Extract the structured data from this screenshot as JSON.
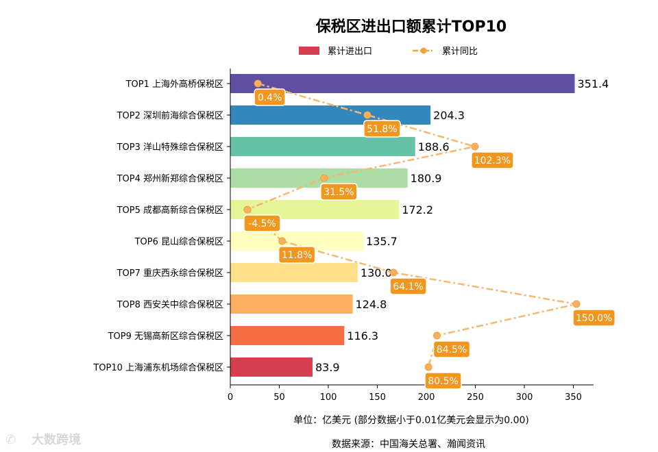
{
  "chart_data": {
    "type": "bar",
    "orientation": "horizontal",
    "title": "保税区进出口额累计TOP10",
    "legend": [
      {
        "name": "累计进出口",
        "kind": "bar",
        "color": "#d63e50"
      },
      {
        "name": "累计同比",
        "kind": "line",
        "color": "#f5a23a"
      }
    ],
    "categories": [
      "TOP1 上海外高桥保税区",
      "TOP2 深圳前海综合保税区",
      "TOP3 洋山特殊综合保税区",
      "TOP4 郑州新郑综合保税区",
      "TOP5 成都高新综合保税区",
      "TOP6 昆山综合保税区",
      "TOP7 重庆西永综合保税区",
      "TOP8 西安关中综合保税区",
      "TOP9 无锡高新区综合保税区",
      "TOP10 上海浦东机场综合保税区"
    ],
    "series": [
      {
        "name": "累计进出口",
        "values": [
          351.4,
          204.3,
          188.6,
          180.9,
          172.2,
          135.7,
          130.0,
          124.8,
          116.3,
          83.9
        ]
      },
      {
        "name": "累计同比",
        "values": [
          0.4,
          51.8,
          102.3,
          31.5,
          -4.5,
          11.8,
          64.1,
          150.0,
          84.5,
          80.5
        ]
      }
    ],
    "value_labels": [
      "351.4",
      "204.3",
      "188.6",
      "180.9",
      "172.2",
      "135.7",
      "130.0",
      "124.8",
      "116.3",
      "83.9"
    ],
    "growth_labels": [
      "0.4%",
      "51.8%",
      "102.3%",
      "31.5%",
      "-4.5%",
      "11.8%",
      "64.1%",
      "150.0%",
      "84.5%",
      "80.5%"
    ],
    "bar_colors": [
      "#5e4fa2",
      "#3288bd",
      "#66c2a5",
      "#abdda4",
      "#e6f598",
      "#ffffbf",
      "#fee08b",
      "#fdae61",
      "#f46d43",
      "#d53e4f"
    ],
    "xlim": [
      0,
      370
    ],
    "xticks": [
      0,
      50,
      100,
      150,
      200,
      250,
      300,
      350
    ],
    "growth_xlim": [
      -20,
      165
    ],
    "xlabel": "单位：亿美元  (部分数据小于0.01亿美元会显示为0.00)",
    "source": "数据来源：中国海关总署、瀚闻资讯",
    "watermark": "大数跨境"
  }
}
